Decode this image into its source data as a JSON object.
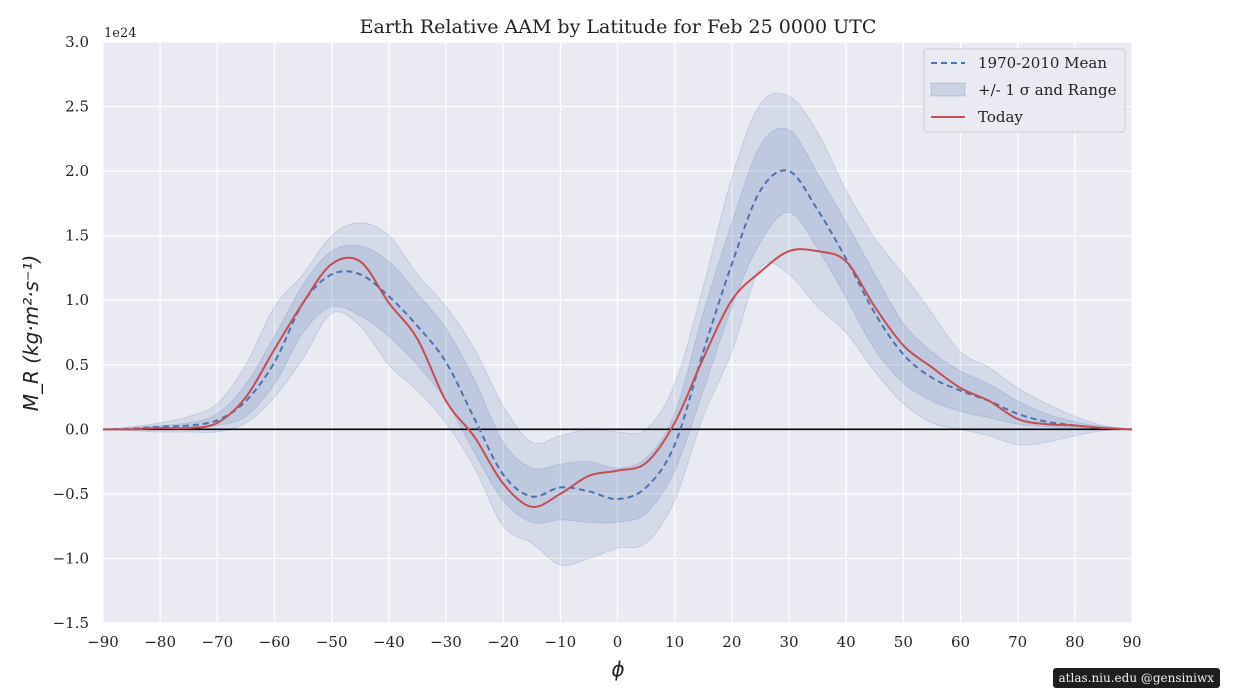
{
  "watermark": "atlas.niu.edu  @gensiniwx",
  "chart_data": {
    "type": "line",
    "title": "Earth Relative AAM by Latitude for Feb 25 0000 UTC",
    "xlabel": "ϕ",
    "ylabel": "M_R (kg·m²·s⁻¹)",
    "y_offset_label": "1e24",
    "xlim": [
      -90,
      90
    ],
    "ylim": [
      -1.5,
      3.0
    ],
    "xticks": [
      -90,
      -80,
      -70,
      -60,
      -50,
      -40,
      -30,
      -20,
      -10,
      0,
      10,
      20,
      30,
      40,
      50,
      60,
      70,
      80,
      90
    ],
    "xtick_labels": [
      "−90",
      "−80",
      "−70",
      "−60",
      "−50",
      "−40",
      "−30",
      "−20",
      "−10",
      "0",
      "10",
      "20",
      "30",
      "40",
      "50",
      "60",
      "70",
      "80",
      "90"
    ],
    "yticks": [
      -1.5,
      -1.0,
      -0.5,
      0.0,
      0.5,
      1.0,
      1.5,
      2.0,
      2.5,
      3.0
    ],
    "ytick_labels": [
      "−1.5",
      "−1.0",
      "−0.5",
      "0.0",
      "0.5",
      "1.0",
      "1.5",
      "2.0",
      "2.5",
      "3.0"
    ],
    "grid": true,
    "legend_position": "top-right",
    "legend": [
      {
        "label": "1970-2010 Mean",
        "style": "dashed",
        "color": "#4c72b0"
      },
      {
        "label": "+/- 1 σ and Range",
        "style": "band",
        "color": "#4c72b0"
      },
      {
        "label": "Today",
        "style": "solid",
        "color": "#c44e52"
      }
    ],
    "x": [
      -90,
      -85,
      -80,
      -75,
      -70,
      -65,
      -60,
      -55,
      -50,
      -45,
      -40,
      -35,
      -30,
      -25,
      -20,
      -15,
      -10,
      -5,
      0,
      5,
      10,
      15,
      20,
      25,
      30,
      35,
      40,
      45,
      50,
      55,
      60,
      65,
      70,
      75,
      80,
      85,
      90
    ],
    "series": [
      {
        "name": "1970-2010 Mean",
        "color": "#4c72b0",
        "style": "dashed",
        "values": [
          0,
          0.005,
          0.02,
          0.03,
          0.07,
          0.22,
          0.52,
          0.98,
          1.2,
          1.2,
          1.03,
          0.8,
          0.52,
          0.08,
          -0.35,
          -0.52,
          -0.45,
          -0.48,
          -0.54,
          -0.45,
          -0.12,
          0.6,
          1.28,
          1.85,
          2.0,
          1.7,
          1.32,
          0.9,
          0.58,
          0.4,
          0.3,
          0.22,
          0.12,
          0.06,
          0.03,
          0.01,
          0
        ]
      },
      {
        "name": "Today",
        "color": "#c44e52",
        "style": "solid",
        "values": [
          0,
          0,
          0.01,
          0.01,
          0.05,
          0.25,
          0.62,
          0.98,
          1.28,
          1.3,
          0.98,
          0.7,
          0.22,
          -0.06,
          -0.42,
          -0.6,
          -0.5,
          -0.36,
          -0.32,
          -0.26,
          0.05,
          0.55,
          1.0,
          1.22,
          1.38,
          1.38,
          1.3,
          0.95,
          0.65,
          0.48,
          0.32,
          0.22,
          0.08,
          0.04,
          0.03,
          0.01,
          0
        ]
      }
    ],
    "std_band": {
      "lower": [
        0,
        0.003,
        0.01,
        0.02,
        0.03,
        0.1,
        0.35,
        0.75,
        0.95,
        0.88,
        0.72,
        0.5,
        0.22,
        -0.18,
        -0.55,
        -0.72,
        -0.7,
        -0.72,
        -0.72,
        -0.65,
        -0.32,
        0.3,
        0.95,
        1.45,
        1.68,
        1.4,
        1.02,
        0.62,
        0.36,
        0.22,
        0.14,
        0.09,
        0.04,
        0.02,
        0.01,
        0.004,
        0
      ],
      "upper": [
        0,
        0.01,
        0.03,
        0.05,
        0.12,
        0.35,
        0.72,
        1.12,
        1.38,
        1.42,
        1.3,
        1.05,
        0.78,
        0.38,
        -0.1,
        -0.3,
        -0.27,
        -0.25,
        -0.3,
        -0.22,
        0.12,
        0.9,
        1.6,
        2.2,
        2.32,
        1.98,
        1.6,
        1.2,
        0.82,
        0.6,
        0.45,
        0.35,
        0.22,
        0.12,
        0.06,
        0.02,
        0
      ]
    },
    "range_band": {
      "lower": [
        0,
        -0.01,
        -0.02,
        -0.02,
        -0.02,
        0.05,
        0.25,
        0.55,
        0.9,
        0.8,
        0.5,
        0.3,
        0.05,
        -0.3,
        -0.75,
        -0.88,
        -1.05,
        -1.0,
        -0.92,
        -0.88,
        -0.55,
        0.1,
        0.6,
        1.25,
        1.2,
        0.95,
        0.75,
        0.45,
        0.2,
        0.05,
        0.0,
        -0.05,
        -0.12,
        -0.1,
        -0.05,
        -0.01,
        0
      ],
      "upper": [
        0,
        0.02,
        0.05,
        0.1,
        0.2,
        0.5,
        0.95,
        1.2,
        1.5,
        1.6,
        1.5,
        1.2,
        0.95,
        0.62,
        0.18,
        -0.1,
        -0.05,
        0.0,
        -0.02,
        0.0,
        0.35,
        1.1,
        1.95,
        2.52,
        2.58,
        2.3,
        1.85,
        1.48,
        1.2,
        0.9,
        0.6,
        0.48,
        0.32,
        0.2,
        0.1,
        0.03,
        0
      ]
    }
  }
}
